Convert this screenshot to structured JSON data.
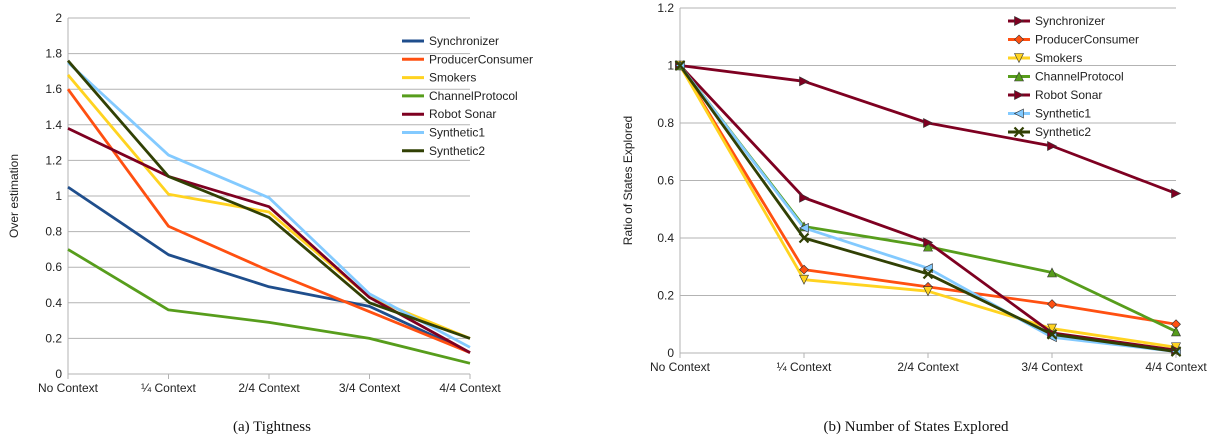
{
  "chart_data": [
    {
      "type": "line",
      "caption": "(a) Tightness",
      "ylabel": "Over estimation",
      "xlabel": "",
      "ylim": [
        0,
        2
      ],
      "yticks": [
        "0",
        "0.2",
        "0.4",
        "0.6",
        "0.8",
        "1",
        "1.2",
        "1.4",
        "1.6",
        "1.8",
        "2"
      ],
      "grid": true,
      "legend_position": "top-right",
      "markers": false,
      "categories": [
        "No Context",
        "¼ Context",
        "2/4 Context",
        "3/4 Context",
        "4/4 Context"
      ],
      "series": [
        {
          "name": "Synchronizer",
          "color": "#1f4e8c",
          "values": [
            1.05,
            0.67,
            0.49,
            0.38,
            0.12
          ]
        },
        {
          "name": "ProducerConsumer",
          "color": "#ff5011",
          "values": [
            1.6,
            0.83,
            0.58,
            0.35,
            0.12
          ]
        },
        {
          "name": "Smokers",
          "color": "#ffd320",
          "values": [
            1.68,
            1.01,
            0.91,
            0.43,
            0.2
          ]
        },
        {
          "name": "ChannelProtocol",
          "color": "#579d1c",
          "values": [
            0.7,
            0.36,
            0.29,
            0.2,
            0.06
          ]
        },
        {
          "name": "Robot Sonar",
          "color": "#7e0021",
          "values": [
            1.38,
            1.11,
            0.94,
            0.43,
            0.12
          ]
        },
        {
          "name": "Synthetic1",
          "color": "#83caff",
          "values": [
            1.75,
            1.23,
            0.99,
            0.45,
            0.15
          ]
        },
        {
          "name": "Synthetic2",
          "color": "#314004",
          "values": [
            1.76,
            1.11,
            0.88,
            0.4,
            0.2
          ]
        }
      ]
    },
    {
      "type": "line",
      "caption": "(b) Number of States Explored",
      "ylabel": "Ratio of States Explored",
      "xlabel": "",
      "ylim": [
        0,
        1.2
      ],
      "yticks": [
        "0",
        "0.2",
        "0.4",
        "0.6",
        "0.8",
        "1",
        "1.2"
      ],
      "grid": true,
      "legend_position": "top-right",
      "markers": true,
      "categories": [
        "No Context",
        "¼ Context",
        "2/4 Context",
        "3/4 Context",
        "4/4 Context"
      ],
      "series": [
        {
          "name": "Synchronizer",
          "color": "#7e0021",
          "marker": "triangle-right",
          "values": [
            1.0,
            0.945,
            0.8,
            0.72,
            0.555
          ]
        },
        {
          "name": "ProducerConsumer",
          "color": "#ff5011",
          "marker": "diamond",
          "values": [
            1.0,
            0.29,
            0.23,
            0.17,
            0.1
          ]
        },
        {
          "name": "Smokers",
          "color": "#ffd320",
          "marker": "triangle-down",
          "values": [
            1.0,
            0.255,
            0.215,
            0.085,
            0.02
          ]
        },
        {
          "name": "ChannelProtocol",
          "color": "#579d1c",
          "marker": "triangle-up",
          "values": [
            1.0,
            0.44,
            0.37,
            0.28,
            0.075
          ]
        },
        {
          "name": "Robot Sonar",
          "color": "#7e0021",
          "marker": "triangle-right",
          "values": [
            1.0,
            0.54,
            0.385,
            0.07,
            0.01
          ]
        },
        {
          "name": "Synthetic1",
          "color": "#83caff",
          "marker": "triangle-left",
          "values": [
            1.0,
            0.435,
            0.295,
            0.055,
            0.005
          ]
        },
        {
          "name": "Synthetic2",
          "color": "#314004",
          "marker": "x-cross",
          "values": [
            1.0,
            0.4,
            0.275,
            0.065,
            0.005
          ]
        }
      ]
    }
  ]
}
